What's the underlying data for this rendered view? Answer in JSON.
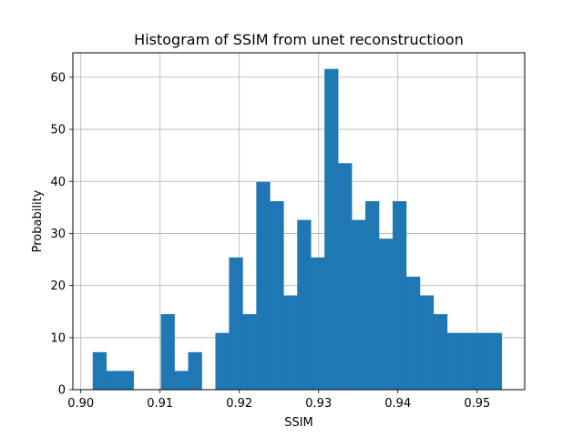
{
  "chart_data": {
    "type": "bar",
    "title": "Histogram of SSIM from unet reconstructioon",
    "xlabel": "SSIM",
    "ylabel": "Probability",
    "xlim": [
      0.899,
      0.956
    ],
    "ylim": [
      0,
      64.7
    ],
    "grid": true,
    "color": "#1f77b4",
    "bin_start": 0.9015,
    "bin_width": 0.00172,
    "values": [
      7.2,
      3.6,
      3.6,
      0,
      0,
      14.5,
      3.6,
      7.2,
      0,
      10.9,
      25.4,
      14.5,
      39.9,
      36.2,
      18.1,
      32.6,
      25.4,
      61.6,
      43.5,
      32.6,
      36.2,
      29.0,
      36.2,
      21.7,
      18.1,
      14.5,
      10.9,
      10.9,
      10.9,
      10.9
    ],
    "xticks": [
      0.9,
      0.91,
      0.92,
      0.93,
      0.94,
      0.95
    ],
    "xtick_labels": [
      "0.90",
      "0.91",
      "0.92",
      "0.93",
      "0.94",
      "0.95"
    ],
    "yticks": [
      0,
      10,
      20,
      30,
      40,
      50,
      60
    ],
    "ytick_labels": [
      "0",
      "10",
      "20",
      "30",
      "40",
      "50",
      "60"
    ]
  }
}
